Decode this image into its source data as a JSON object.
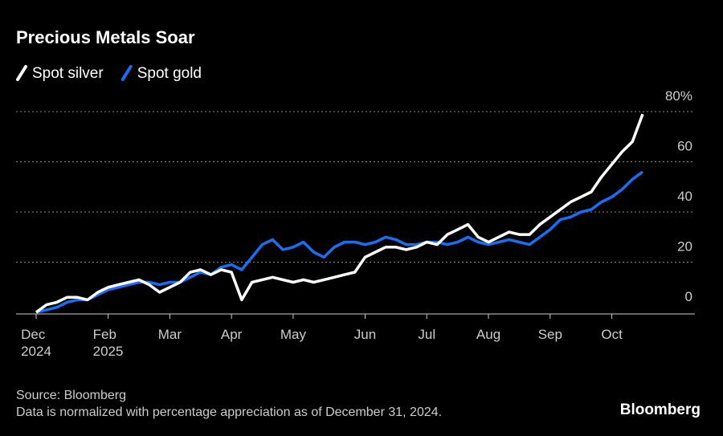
{
  "chart_data": {
    "type": "line",
    "title": "Precious Metals Soar",
    "categories": [
      "Dec\n2024",
      null,
      null,
      null,
      null,
      null,
      null,
      "Feb\n2025",
      null,
      null,
      null,
      null,
      null,
      "Mar",
      null,
      null,
      null,
      null,
      null,
      "Apr",
      null,
      null,
      null,
      null,
      null,
      "May",
      null,
      null,
      null,
      null,
      null,
      null,
      "Jun",
      null,
      null,
      null,
      null,
      null,
      "Jul",
      null,
      null,
      null,
      null,
      null,
      "Aug",
      null,
      null,
      null,
      null,
      null,
      "Sep",
      null,
      null,
      null,
      null,
      null,
      "Oct",
      null,
      null,
      null
    ],
    "series": [
      {
        "name": "Spot silver",
        "color": "#ffffff",
        "values": [
          0,
          3,
          4,
          6,
          6,
          5,
          8,
          10,
          11,
          12,
          13,
          11,
          8,
          10,
          12,
          16,
          17,
          15,
          17,
          16,
          5,
          12,
          13,
          14,
          13,
          12,
          13,
          12,
          13,
          14,
          15,
          16,
          22,
          24,
          26,
          26,
          25,
          26,
          28,
          27,
          31,
          33,
          35,
          30,
          28,
          30,
          32,
          31,
          31,
          35,
          38,
          41,
          44,
          46,
          48,
          54,
          59,
          64,
          68,
          79
        ]
      },
      {
        "name": "Spot gold",
        "color": "#1a6ef5",
        "values": [
          0,
          1,
          2,
          4,
          5,
          5,
          7,
          9,
          10,
          11,
          12,
          12,
          11,
          12,
          12,
          14,
          16,
          15,
          18,
          19,
          17,
          22,
          27,
          29,
          25,
          26,
          28,
          24,
          22,
          26,
          28,
          28,
          27,
          28,
          30,
          29,
          27,
          27,
          28,
          28,
          27,
          28,
          30,
          28,
          27,
          28,
          29,
          28,
          27,
          30,
          33,
          37,
          38,
          40,
          41,
          44,
          46,
          49,
          53,
          56
        ]
      }
    ],
    "ylim": [
      0,
      80
    ],
    "yticks": [
      0,
      20,
      40,
      60,
      {
        "value": 80,
        "label": "80%"
      }
    ],
    "grid": true,
    "source": "Source: Bloomberg",
    "note": "Data is normalized with percentage appreciation as of December 31, 2024.",
    "brand": "Bloomberg"
  }
}
